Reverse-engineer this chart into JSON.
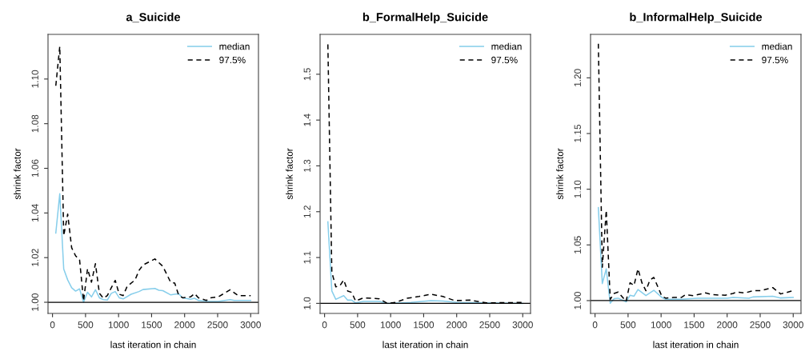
{
  "chart_data": [
    {
      "type": "line",
      "title": "a_Suicide",
      "xlabel": "last iteration in chain",
      "ylabel": "shrink factor",
      "xlim": [
        -68,
        3118
      ],
      "xticks": [
        0,
        500,
        1000,
        1500,
        2000,
        2500,
        3000
      ],
      "ylim": [
        0.995,
        1.12
      ],
      "yticks": [
        {
          "value": 1.0,
          "label": "1.00"
        },
        {
          "value": 1.02,
          "label": "1.02"
        },
        {
          "value": 1.04,
          "label": "1.04"
        },
        {
          "value": 1.06,
          "label": "1.06"
        },
        {
          "value": 1.08,
          "label": "1.08"
        },
        {
          "value": 1.1,
          "label": "1.10"
        }
      ],
      "legend": "top right",
      "grid": false,
      "ref_lines": [
        {
          "axis": "y",
          "value": 1.0,
          "color": "#000000"
        }
      ],
      "series": [
        {
          "name": "median",
          "color": "#87ceeb",
          "line_style": "solid",
          "x": [
            50,
            110,
            170,
            230,
            290,
            350,
            410,
            470,
            530,
            590,
            650,
            710,
            770,
            830,
            890,
            950,
            1010,
            1070,
            1190,
            1310,
            1370,
            1550,
            1610,
            1670,
            1790,
            1850,
            1910,
            1970,
            2090,
            2150,
            2210,
            2330,
            2510,
            2690,
            2750,
            3000
          ],
          "values": [
            1.031,
            1.0486,
            1.0149,
            1.01,
            1.0065,
            1.005,
            1.006,
            1.0,
            1.0045,
            1.0024,
            1.0056,
            1.002,
            1.0012,
            1.001,
            1.004,
            1.0048,
            1.002,
            1.0015,
            1.0036,
            1.0048,
            1.0057,
            1.0062,
            1.0054,
            1.0052,
            1.0033,
            1.0036,
            1.0038,
            1.002,
            1.0014,
            1.0018,
            1.0008,
            1.0004,
            1.0004,
            1.0012,
            1.0008,
            1.0008
          ]
        },
        {
          "name": "97.5%",
          "color": "#000000",
          "line_style": "dashed",
          "x": [
            50,
            110,
            170,
            230,
            290,
            350,
            410,
            470,
            530,
            590,
            650,
            710,
            770,
            830,
            890,
            950,
            1010,
            1070,
            1130,
            1250,
            1310,
            1370,
            1550,
            1670,
            1790,
            1850,
            1910,
            1970,
            2090,
            2150,
            2210,
            2330,
            2390,
            2510,
            2690,
            2810,
            3000
          ],
          "values": [
            1.097,
            1.1146,
            1.0298,
            1.0395,
            1.0244,
            1.0208,
            1.019,
            1.0006,
            1.015,
            1.009,
            1.0173,
            1.004,
            1.0018,
            1.003,
            1.0065,
            1.0098,
            1.0036,
            1.003,
            1.0071,
            1.01,
            1.0143,
            1.0167,
            1.0194,
            1.0161,
            1.0089,
            1.0086,
            1.0032,
            1.002,
            1.0024,
            1.0039,
            1.002,
            1.0008,
            1.002,
            1.0024,
            1.0056,
            1.003,
            1.003
          ]
        }
      ]
    },
    {
      "type": "line",
      "title": "b_FormalHelp_Suicide",
      "xlabel": "last iteration in chain",
      "ylabel": "shrink factor",
      "xlim": [
        -68,
        3118
      ],
      "xticks": [
        0,
        500,
        1000,
        1500,
        2000,
        2500,
        3000
      ],
      "ylim": [
        0.978,
        1.587
      ],
      "yticks": [
        {
          "value": 1.0,
          "label": "1.0"
        },
        {
          "value": 1.1,
          "label": "1.1"
        },
        {
          "value": 1.2,
          "label": "1.2"
        },
        {
          "value": 1.3,
          "label": "1.3"
        },
        {
          "value": 1.4,
          "label": "1.4"
        },
        {
          "value": 1.5,
          "label": "1.5"
        }
      ],
      "legend": "top right",
      "grid": false,
      "ref_lines": [
        {
          "axis": "y",
          "value": 1.0,
          "color": "#000000"
        }
      ],
      "series": [
        {
          "name": "median",
          "color": "#87ceeb",
          "line_style": "solid",
          "x": [
            50,
            110,
            170,
            290,
            350,
            410,
            470,
            590,
            830,
            950,
            1310,
            1610,
            1790,
            2000,
            3000
          ],
          "values": [
            1.178,
            1.027,
            1.0087,
            1.0169,
            1.007,
            1.007,
            1.001,
            1.004,
            1.004,
            1.0,
            1.002,
            1.006,
            1.005,
            1.002,
            1.0
          ]
        },
        {
          "name": "97.5%",
          "color": "#000000",
          "line_style": "dashed",
          "x": [
            50,
            110,
            170,
            230,
            290,
            350,
            410,
            470,
            590,
            830,
            950,
            1070,
            1250,
            1430,
            1610,
            1790,
            1970,
            2210,
            2450,
            3000
          ],
          "values": [
            1.565,
            1.068,
            1.036,
            1.038,
            1.051,
            1.027,
            1.024,
            1.005,
            1.012,
            1.01,
            1.0,
            1.002,
            1.011,
            1.015,
            1.02,
            1.015,
            1.006,
            1.007,
            1.001,
            1.002
          ]
        }
      ]
    },
    {
      "type": "line",
      "title": "b_InformalHelp_Suicide",
      "xlabel": "last iteration in chain",
      "ylabel": "shrink factor",
      "xlim": [
        -68,
        3118
      ],
      "xticks": [
        0,
        500,
        1000,
        1500,
        2000,
        2500,
        3000
      ],
      "ylim": [
        0.9885,
        1.239
      ],
      "yticks": [
        {
          "value": 1.0,
          "label": "1.00"
        },
        {
          "value": 1.05,
          "label": "1.05"
        },
        {
          "value": 1.1,
          "label": "1.10"
        },
        {
          "value": 1.15,
          "label": "1.15"
        },
        {
          "value": 1.2,
          "label": "1.20"
        }
      ],
      "legend": "top right",
      "grid": false,
      "ref_lines": [
        {
          "axis": "y",
          "value": 1.0,
          "color": "#000000"
        }
      ],
      "series": [
        {
          "name": "median",
          "color": "#87ceeb",
          "line_style": "solid",
          "x": [
            50,
            110,
            170,
            230,
            290,
            350,
            470,
            530,
            590,
            650,
            770,
            890,
            1010,
            1070,
            1310,
            1550,
            2000,
            2090,
            2330,
            2390,
            2690,
            2810,
            3000
          ],
          "values": [
            1.0835,
            1.0153,
            1.0285,
            0.9976,
            1.0017,
            1.0022,
            0.9988,
            1.0048,
            1.004,
            1.01,
            1.0045,
            1.0093,
            1.0029,
            1.0012,
            1.0012,
            1.0022,
            1.0022,
            1.0029,
            1.0022,
            1.0033,
            1.004,
            1.0024,
            1.0029
          ]
        },
        {
          "name": "97.5%",
          "color": "#000000",
          "line_style": "dashed",
          "x": [
            50,
            110,
            170,
            230,
            290,
            350,
            470,
            530,
            590,
            650,
            710,
            770,
            830,
            890,
            1010,
            1070,
            1190,
            1310,
            1370,
            1490,
            1670,
            1790,
            1970,
            2090,
            2150,
            2270,
            2390,
            2510,
            2690,
            2810,
            3000
          ],
          "values": [
            1.2306,
            1.03,
            1.0811,
            1.0012,
            1.0065,
            1.0077,
            0.9993,
            1.016,
            1.0136,
            1.0285,
            1.016,
            1.0089,
            1.0184,
            1.0208,
            1.0041,
            1.0022,
            1.0029,
            1.0029,
            1.0053,
            1.0045,
            1.0069,
            1.0053,
            1.0048,
            1.0065,
            1.0077,
            1.0069,
            1.0089,
            1.0089,
            1.0117,
            1.006,
            1.0089
          ]
        }
      ]
    }
  ]
}
